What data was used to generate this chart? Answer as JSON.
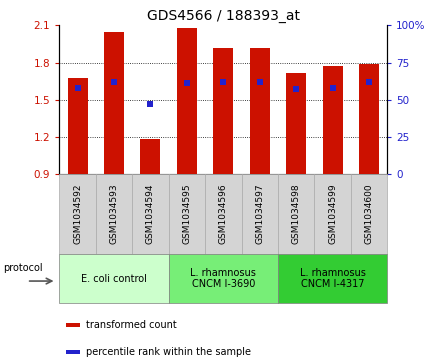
{
  "title": "GDS4566 / 188393_at",
  "samples": [
    "GSM1034592",
    "GSM1034593",
    "GSM1034594",
    "GSM1034595",
    "GSM1034596",
    "GSM1034597",
    "GSM1034598",
    "GSM1034599",
    "GSM1034600"
  ],
  "transformed_count": [
    1.68,
    2.05,
    1.185,
    2.08,
    1.92,
    1.92,
    1.72,
    1.77,
    1.79
  ],
  "percentile_rank": [
    58,
    62,
    47,
    61,
    62,
    62,
    57,
    58,
    62
  ],
  "ylim_left": [
    0.9,
    2.1
  ],
  "ylim_right": [
    0,
    100
  ],
  "yticks_left": [
    0.9,
    1.2,
    1.5,
    1.8,
    2.1
  ],
  "yticks_right": [
    0,
    25,
    50,
    75,
    100
  ],
  "bar_color": "#cc1100",
  "blue_color": "#2222cc",
  "bar_bottom": 0.9,
  "bar_width": 0.55,
  "dotted_lines": [
    1.2,
    1.5,
    1.8
  ],
  "groups": [
    {
      "label": "E. coli control",
      "start": 0,
      "end": 3,
      "color": "#ccffcc"
    },
    {
      "label": "L. rhamnosus\nCNCM I-3690",
      "start": 3,
      "end": 6,
      "color": "#77ee77"
    },
    {
      "label": "L. rhamnosus\nCNCM I-4317",
      "start": 6,
      "end": 9,
      "color": "#33cc33"
    }
  ],
  "sample_label_bg": "#d4d4d4",
  "sample_label_border": "#aaaaaa",
  "protocol_label": "protocol",
  "legend_items": [
    {
      "label": "transformed count",
      "color": "#cc1100"
    },
    {
      "label": "percentile rank within the sample",
      "color": "#2222cc"
    }
  ],
  "tick_color_left": "#cc1100",
  "tick_color_right": "#2222cc",
  "title_fontsize": 10,
  "label_fontsize": 7,
  "tick_fontsize": 7.5
}
